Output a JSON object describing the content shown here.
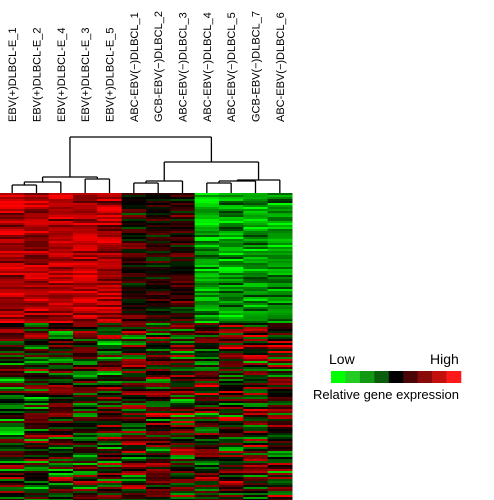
{
  "chart_data": {
    "type": "heatmap",
    "samples": [
      "EBV(+)DLBCL-E_1",
      "EBV(+)DLBCL-E_2",
      "EBV(+)DLBCL-E_4",
      "EBV(+)DLBCL-E_3",
      "EBV(+)DLBCL-E_5",
      "ABC-EBV(−)DLBCL_1",
      "GCB-EBV(−)DLBCL_2",
      "ABC-EBV(−)DLBCL_3",
      "ABC-EBV(−)DLBCL_4",
      "ABC-EBV(−)DLBCL_5",
      "GCB-EBV(−)DLBCL_7",
      "ABC-EBV(−)DLBCL_6"
    ],
    "dendrogram": "column hierarchical clustering: EBV(+) samples 1-5 form one cluster, EBV(-) DLBCL samples form a second cluster",
    "color_scale": {
      "low_label": "Low",
      "high_label": "High",
      "title": "Relative gene expression",
      "colors": [
        "#00ff00",
        "#22cc22",
        "#119911",
        "#0b5e0b",
        "#000000",
        "#4a0606",
        "#8a0a0a",
        "#c40f0f",
        "#ff1a1a"
      ]
    }
  }
}
